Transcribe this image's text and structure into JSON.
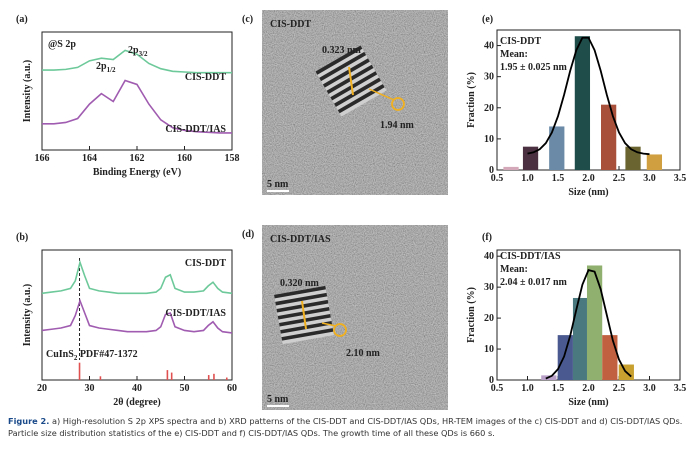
{
  "chart_data": [
    {
      "type": "line",
      "label": "(a)",
      "xlabel": "Binding Energy (eV)",
      "ylabel": "Intensity (a.u.)",
      "xlim": [
        166,
        158
      ],
      "xticks": [
        166,
        164,
        162,
        160,
        158
      ],
      "ylim": [
        0,
        9
      ],
      "x": [
        166,
        165.5,
        165,
        164.5,
        164,
        163.5,
        163,
        162.5,
        162,
        161.5,
        161,
        160.5,
        160,
        159.5,
        159,
        158.5,
        158
      ],
      "series": [
        {
          "name": "CIS-DDT",
          "color": "#6dc99a",
          "values": [
            6.1,
            6.1,
            6.15,
            6.3,
            6.8,
            7.0,
            6.9,
            7.6,
            7.3,
            6.6,
            6.2,
            6.0,
            5.95,
            5.9,
            5.9,
            5.9,
            5.9
          ]
        },
        {
          "name": "CIS-DDT/IAS",
          "color": "#a05cb0",
          "values": [
            2.0,
            2.0,
            2.1,
            2.4,
            3.5,
            4.3,
            3.7,
            5.3,
            5.0,
            3.5,
            2.3,
            1.7,
            1.5,
            1.4,
            1.35,
            1.3,
            1.3
          ]
        }
      ],
      "annotations": [
        {
          "text": "@S 2p"
        },
        {
          "text": "2p",
          "sub": "1/2"
        },
        {
          "text": "2p",
          "sub": "3/2"
        }
      ]
    },
    {
      "type": "line",
      "label": "(b)",
      "xlabel": "2θ (degree)",
      "ylabel": "Intensity (a.u.)",
      "xlim": [
        20,
        60
      ],
      "xticks": [
        20,
        30,
        40,
        50,
        60
      ],
      "ylim": [
        0,
        10.5
      ],
      "x": [
        20,
        22,
        24,
        26,
        27,
        28,
        29,
        30,
        32,
        34,
        36,
        38,
        40,
        42,
        44,
        45,
        46,
        47,
        48,
        50,
        52,
        54,
        55,
        56,
        57,
        58,
        60
      ],
      "series": [
        {
          "name": "CIS-DDT",
          "color": "#6dc99a",
          "values": [
            7.0,
            7.1,
            7.2,
            7.4,
            8.0,
            9.5,
            8.4,
            7.4,
            7.2,
            7.1,
            7.0,
            7.0,
            7.0,
            7.0,
            7.1,
            7.4,
            8.3,
            8.5,
            7.4,
            7.1,
            7.1,
            7.2,
            7.6,
            7.9,
            7.4,
            7.1,
            7.0
          ]
        },
        {
          "name": "CIS-DDT/IAS",
          "color": "#a05cb0",
          "values": [
            4.0,
            4.1,
            4.2,
            4.4,
            5.2,
            6.4,
            5.4,
            4.4,
            4.2,
            4.1,
            4.0,
            3.9,
            3.9,
            3.9,
            4.0,
            4.3,
            5.3,
            5.4,
            4.3,
            4.0,
            3.9,
            4.0,
            4.4,
            4.7,
            4.2,
            3.9,
            3.8
          ]
        }
      ],
      "reference": {
        "name": "CuInS",
        "sub": "2",
        "rest": " PDF#47-1372",
        "color": "#e05050",
        "x": [
          27.9,
          32.3,
          46.4,
          47.3,
          55.1,
          56.2,
          58.9
        ],
        "values": [
          1.4,
          0.3,
          0.8,
          0.6,
          0.4,
          0.5,
          0.2
        ]
      },
      "guide_x": 27.9
    },
    {
      "type": "bar",
      "label": "(e)",
      "xlabel": "Size (nm)",
      "ylabel": "Fraction (%)",
      "xlim": [
        0.5,
        3.5
      ],
      "xticks": [
        0.5,
        {
          "value": 1,
          "label": "1.0"
        },
        1.5,
        {
          "value": 2,
          "label": "2.0"
        },
        2.5,
        {
          "value": 3,
          "label": "3.0"
        },
        3.5
      ],
      "ylim": [
        0,
        45
      ],
      "yticks": [
        0,
        10,
        20,
        30,
        40
      ],
      "x": [
        0.73,
        1.05,
        1.48,
        1.9,
        2.33,
        2.73,
        3.08
      ],
      "values": [
        1,
        7.5,
        14,
        43,
        21,
        7.5,
        5
      ],
      "colors": [
        "#d4a8b8",
        "#4a3040",
        "#6a8aa8",
        "#1f4d4a",
        "#a9503a",
        "#6a6530",
        "#d0a040"
      ],
      "fit": {
        "color": "#000000",
        "x": [
          1.0,
          1.1,
          1.2,
          1.3,
          1.4,
          1.5,
          1.6,
          1.7,
          1.8,
          1.9,
          2.0,
          2.1,
          2.2,
          2.3,
          2.4,
          2.5,
          2.6,
          2.7,
          2.8,
          2.9,
          3.0
        ],
        "values": [
          5.25,
          5.69,
          6.67,
          8.63,
          12.07,
          17.3,
          24.2,
          31.9,
          38.5,
          42.5,
          42.5,
          38.5,
          31.9,
          24.2,
          17.3,
          12.07,
          8.63,
          6.67,
          5.69,
          5.25,
          5.08
        ]
      },
      "annotations": [
        {
          "text": "CIS-DDT"
        },
        {
          "text": "Mean:"
        },
        {
          "text": "1.95 ± 0.025 nm"
        }
      ]
    },
    {
      "type": "bar",
      "label": "(f)",
      "xlabel": "Size (nm)",
      "ylabel": "Fraction (%)",
      "xlim": [
        0.5,
        3.5
      ],
      "xticks": [
        0.5,
        {
          "value": 1,
          "label": "1.0"
        },
        1.5,
        {
          "value": 2,
          "label": "2.0"
        },
        2.5,
        {
          "value": 3,
          "label": "3.0"
        },
        3.5
      ],
      "ylim": [
        0,
        42
      ],
      "yticks": [
        0,
        10,
        20,
        30,
        40
      ],
      "x": [
        1.35,
        1.62,
        1.87,
        2.1,
        2.35,
        2.62
      ],
      "values": [
        1.5,
        14.5,
        26.5,
        37,
        14.5,
        5
      ],
      "colors": [
        "#b8a0c8",
        "#4a5a90",
        "#4a7a80",
        "#90b070",
        "#c06040",
        "#c8a030"
      ],
      "fit": {
        "color": "#000000",
        "x": [
          1.3,
          1.4,
          1.5,
          1.6,
          1.7,
          1.8,
          1.9,
          2.0,
          2.1,
          2.2,
          2.3,
          2.4,
          2.5,
          2.6,
          2.7
        ],
        "values": [
          0.45,
          1.36,
          3.5,
          7.6,
          14.3,
          22.7,
          30.8,
          35.5,
          35.0,
          29.3,
          21.0,
          12.7,
          6.6,
          2.9,
          1.1
        ]
      },
      "annotations": [
        {
          "text": "CIS-DDT/IAS"
        },
        {
          "text": "Mean:"
        },
        {
          "text": "2.04 ± 0.017 nm"
        }
      ]
    }
  ],
  "images": [
    {
      "label": "(c)",
      "title": "CIS-DDT",
      "spacing": "0.323 nm",
      "size": "1.94 nm",
      "scale": "5 nm"
    },
    {
      "label": "(d)",
      "title": "CIS-DDT/IAS",
      "spacing": "0.320 nm",
      "size": "2.10 nm",
      "scale": "5 nm"
    }
  ],
  "caption": {
    "label": "Figure 2.",
    "text": "a) High-resolution S 2p XPS spectra and b) XRD patterns of the CIS-DDT and CIS-DDT/IAS QDs, HR-TEM images of the c) CIS-DDT and d) CIS-DDT/IAS QDs. Particle size distribution statistics of the e) CIS-DDT and f) CIS-DDT/IAS QDs. The growth time of all these QDs is 660 s."
  }
}
